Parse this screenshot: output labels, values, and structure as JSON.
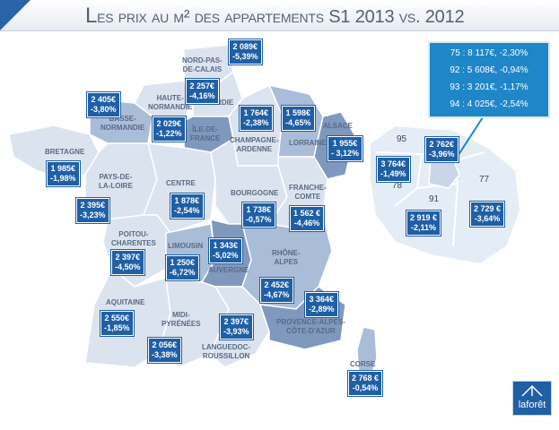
{
  "title": {
    "cap": "L",
    "rest": "es prix au m² des appartements",
    "tail": "S1 2013 vs. 2012"
  },
  "regions": [
    {
      "id": "nord",
      "name1": "NORD-PAS-",
      "name2": "DE-CALAIS",
      "price": "2 089€",
      "change": "-5,39%"
    },
    {
      "id": "picardie",
      "name1": "PICARDIE",
      "name2": "",
      "price": "2 257€",
      "change": "-4,16%"
    },
    {
      "id": "haute-normandie",
      "name1": "HAUTE-",
      "name2": "NORMANDIE",
      "price": "2 029€",
      "change": "-1,22%"
    },
    {
      "id": "basse-normandie",
      "name1": "BASSE-",
      "name2": "NORMANDIE",
      "price": "2 405€",
      "change": "-3,80%"
    },
    {
      "id": "ile-de-france",
      "name1": "ÎLE-DE-",
      "name2": "FRANCE",
      "price": "1 764€",
      "change": "-2,38%"
    },
    {
      "id": "champagne",
      "name1": "CHAMPAGNE-",
      "name2": "ARDENNE",
      "price": "1 598€",
      "change": "-4,65%"
    },
    {
      "id": "lorraine",
      "name1": "LORRAINE",
      "name2": "",
      "price": "",
      "change": ""
    },
    {
      "id": "alsace",
      "name1": "ALSACE",
      "name2": "",
      "price": "1 955€",
      "change": "- 3,12%"
    },
    {
      "id": "bretagne",
      "name1": "BRETAGNE",
      "name2": "",
      "price": "1 985€",
      "change": "-1,98%"
    },
    {
      "id": "pays-de-la-loire",
      "name1": "PAYS-DE-",
      "name2": "LA-LOIRE",
      "price": "2 395€",
      "change": "-3,23%"
    },
    {
      "id": "centre",
      "name1": "CENTRE",
      "name2": "",
      "price": "1 878€",
      "change": "-2,54%"
    },
    {
      "id": "bourgogne",
      "name1": "BOURGOGNE",
      "name2": "",
      "price": "1 738€",
      "change": "-0,57%"
    },
    {
      "id": "franche-comte",
      "name1": "FRANCHE-",
      "name2": "COMTE",
      "price": "1 562 €",
      "change": "-4,46%"
    },
    {
      "id": "poitou",
      "name1": "POITOU-",
      "name2": "CHARENTES",
      "price": "2 397€",
      "change": "-4,50%"
    },
    {
      "id": "limousin",
      "name1": "LIMOUSIN",
      "name2": "",
      "price": "1 250€",
      "change": "-6,72%"
    },
    {
      "id": "auvergne",
      "name1": "AUVERGNE",
      "name2": "",
      "price": "1 343€",
      "change": "-5,02%"
    },
    {
      "id": "rhone-alpes",
      "name1": "RHÔNE-",
      "name2": "ALPES",
      "price": "2 452€",
      "change": "-4,67%"
    },
    {
      "id": "aquitaine",
      "name1": "AQUITAINE",
      "name2": "",
      "price": "2 550€",
      "change": "-1,85%"
    },
    {
      "id": "midi-pyrenees",
      "name1": "MIDI-",
      "name2": "PYRÉNÉES",
      "price": "2 056€",
      "change": "-3,38%"
    },
    {
      "id": "languedoc",
      "name1": "LANGUEDOC-",
      "name2": "ROUSSILLON",
      "price": "2 397€",
      "change": "-3,93%"
    },
    {
      "id": "paca",
      "name1": "PROVENCE-ALPES-",
      "name2": "CÔTE-D'AZUR",
      "price": "3 364€",
      "change": "-2,89%"
    },
    {
      "id": "corse",
      "name1": "CORSE",
      "name2": "",
      "price": "2 768 €",
      "change": "-0,54%"
    }
  ],
  "idf_inset": {
    "departments": [
      "95",
      "78",
      "91",
      "77"
    ],
    "prices": [
      {
        "id": "paris",
        "price": "2 762€",
        "change": "-3,96%"
      },
      {
        "id": "yvelines",
        "price": "3 764€",
        "change": "-1,49%"
      },
      {
        "id": "essonne",
        "price": "2 919 €",
        "change": "-2,11%"
      },
      {
        "id": "seine-et-marne",
        "price": "2 729 €",
        "change": "-3,64%"
      }
    ],
    "info_lines": [
      "75 : 8 117€, -2,30%",
      "92 : 5 608€, -0,94%",
      "93 : 3 201€, -1,17%",
      "94 : 4 025€, -2,54%"
    ]
  },
  "logo_text": "laforêt",
  "colors": {
    "brand_blue": "#1f5fa6",
    "info_blue": "#1f86c8",
    "region_dark": "#7f98be",
    "region_mid": "#a9bcd8",
    "region_light": "#dbe3ee",
    "inset": "#e4ecf5"
  }
}
